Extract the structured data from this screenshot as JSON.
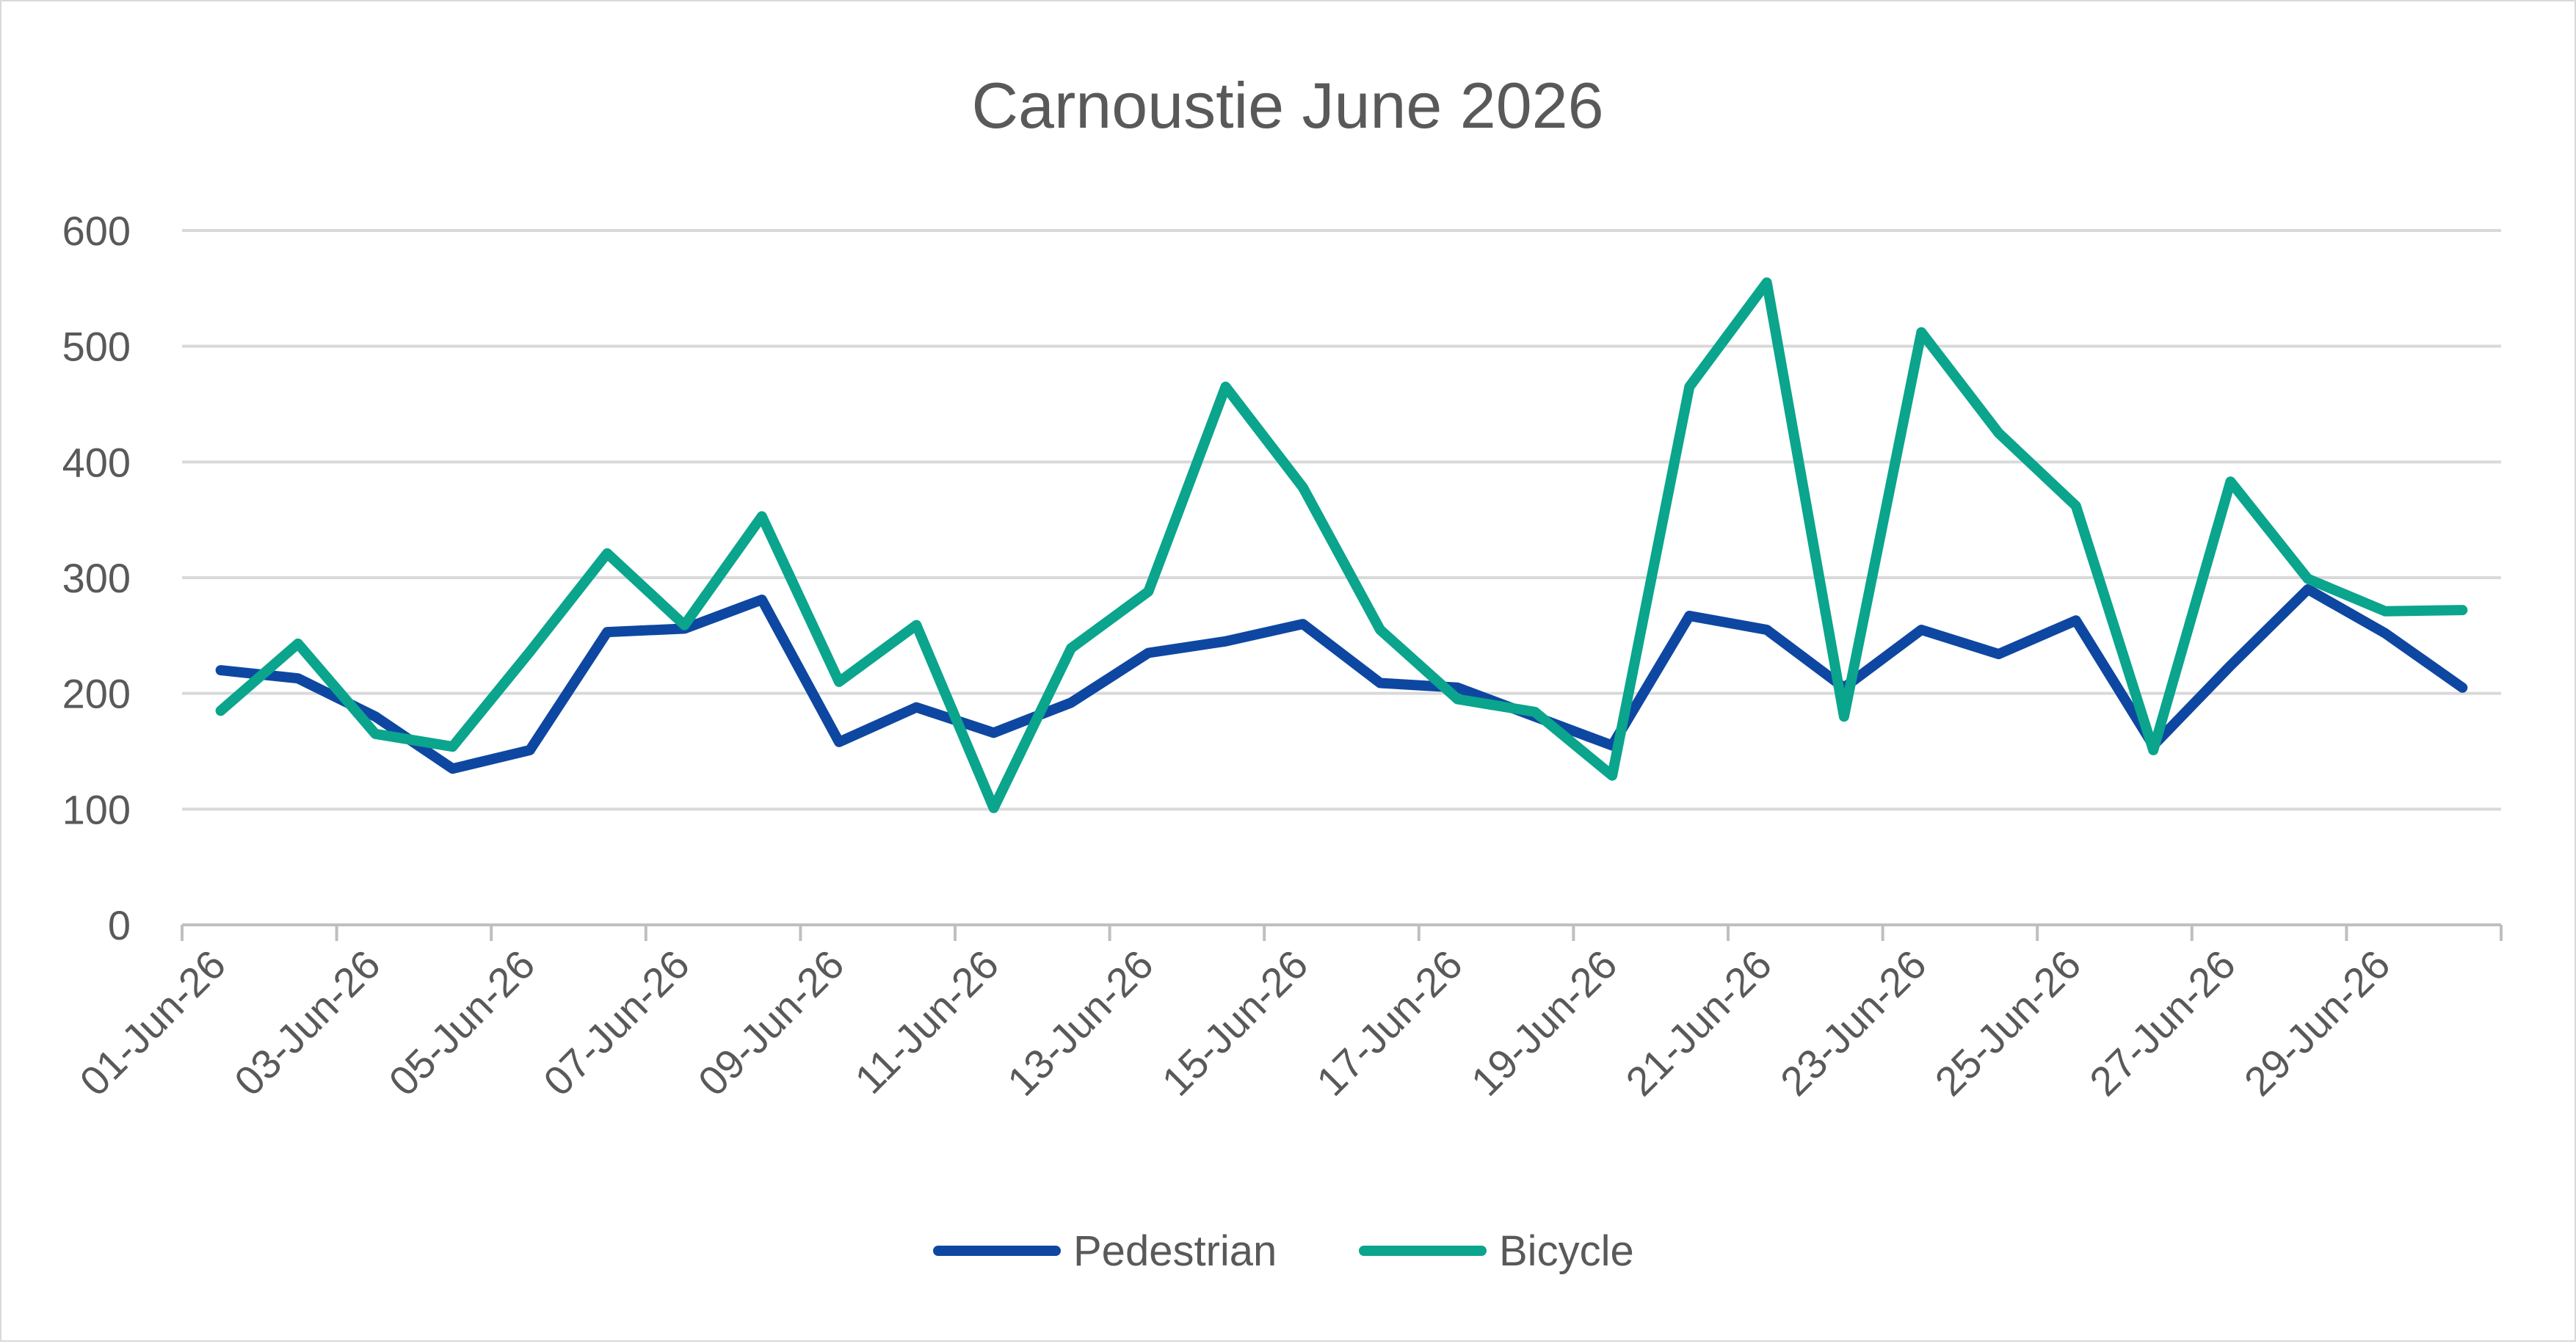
{
  "chart_data": {
    "type": "line",
    "title": "Carnoustie June 2026",
    "xlabel": "",
    "ylabel": "",
    "ylim": [
      0,
      600
    ],
    "yticks": [
      0,
      100,
      200,
      300,
      400,
      500,
      600
    ],
    "grid": true,
    "legend_position": "bottom",
    "x": [
      "01-Jun-26",
      "02-Jun-26",
      "03-Jun-26",
      "04-Jun-26",
      "05-Jun-26",
      "06-Jun-26",
      "07-Jun-26",
      "08-Jun-26",
      "09-Jun-26",
      "10-Jun-26",
      "11-Jun-26",
      "12-Jun-26",
      "13-Jun-26",
      "14-Jun-26",
      "15-Jun-26",
      "16-Jun-26",
      "17-Jun-26",
      "18-Jun-26",
      "19-Jun-26",
      "20-Jun-26",
      "21-Jun-26",
      "22-Jun-26",
      "23-Jun-26",
      "24-Jun-26",
      "25-Jun-26",
      "26-Jun-26",
      "27-Jun-26",
      "28-Jun-26",
      "29-Jun-26",
      "30-Jun-26"
    ],
    "xtick_labels": [
      "01-Jun-26",
      "03-Jun-26",
      "05-Jun-26",
      "07-Jun-26",
      "09-Jun-26",
      "11-Jun-26",
      "13-Jun-26",
      "15-Jun-26",
      "17-Jun-26",
      "19-Jun-26",
      "21-Jun-26",
      "23-Jun-26",
      "25-Jun-26",
      "27-Jun-26",
      "29-Jun-26"
    ],
    "series": [
      {
        "name": "Pedestrian",
        "color": "#0e47a1",
        "values": [
          220,
          213,
          180,
          135,
          151,
          253,
          256,
          281,
          158,
          188,
          166,
          192,
          235,
          245,
          260,
          209,
          205,
          180,
          155,
          267,
          255,
          205,
          255,
          234,
          263,
          155,
          224,
          290,
          252,
          205
        ]
      },
      {
        "name": "Bicycle",
        "color": "#0aa58c",
        "values": [
          185,
          243,
          165,
          154,
          236,
          321,
          259,
          353,
          210,
          259,
          101,
          239,
          288,
          465,
          378,
          255,
          195,
          184,
          129,
          465,
          555,
          180,
          512,
          425,
          362,
          151,
          383,
          299,
          271,
          272
        ]
      }
    ]
  }
}
